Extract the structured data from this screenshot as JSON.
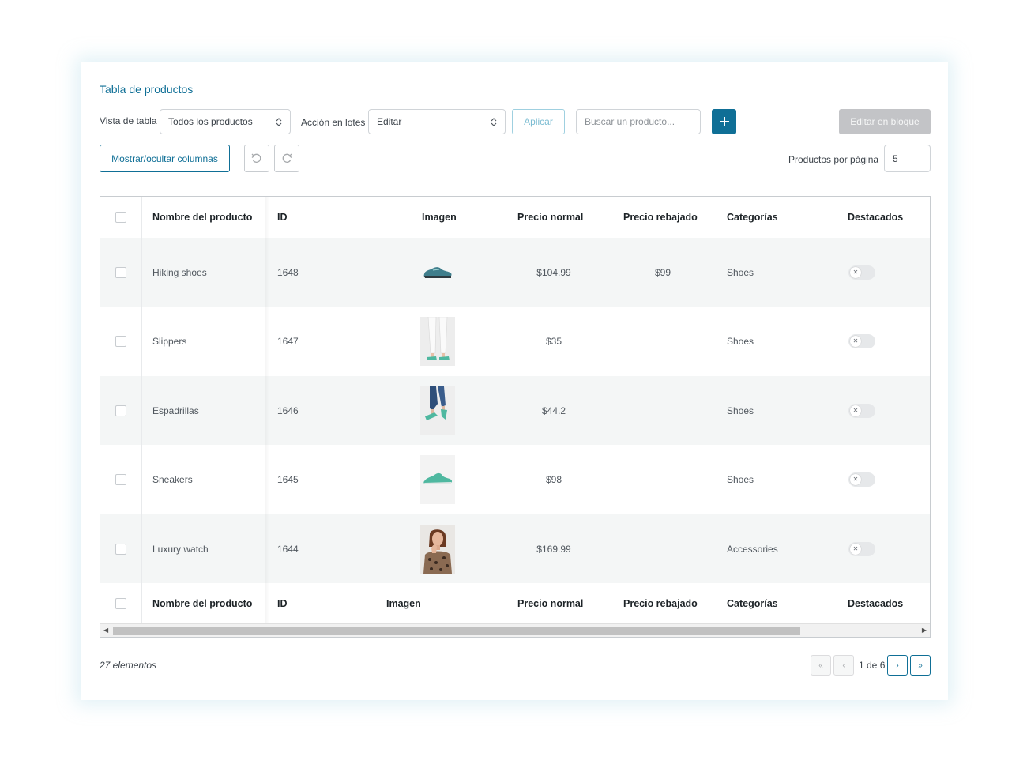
{
  "title": "Tabla de productos",
  "toolbar": {
    "view_label": "Vista de tabla",
    "view_value": "Todos los productos",
    "bulk_label": "Acción en lotes",
    "bulk_value": "Editar",
    "apply_label": "Aplicar",
    "search_placeholder": "Buscar un producto...",
    "bulk_edit_label": "Editar en bloque",
    "columns_label": "Mostrar/ocultar columnas",
    "per_page_label": "Productos por página",
    "per_page_value": "5"
  },
  "table": {
    "headers": [
      "Nombre del producto",
      "ID",
      "Imagen",
      "Precio normal",
      "Precio rebajado",
      "Categorías",
      "Destacados"
    ],
    "rows": [
      {
        "name": "Hiking shoes",
        "id": "1648",
        "image": "hiking-shoe",
        "price": "$104.99",
        "sale": "$99",
        "category": "Shoes",
        "featured": false
      },
      {
        "name": "Slippers",
        "id": "1647",
        "image": "slippers",
        "price": "$35",
        "sale": "",
        "category": "Shoes",
        "featured": false
      },
      {
        "name": "Espadrillas",
        "id": "1646",
        "image": "espadrillas",
        "price": "$44.2",
        "sale": "",
        "category": "Shoes",
        "featured": false
      },
      {
        "name": "Sneakers",
        "id": "1645",
        "image": "sneaker",
        "price": "$98",
        "sale": "",
        "category": "Shoes",
        "featured": false
      },
      {
        "name": "Luxury watch",
        "id": "1644",
        "image": "woman-portrait",
        "price": "$169.99",
        "sale": "",
        "category": "Accessories",
        "featured": false
      }
    ]
  },
  "footer": {
    "count": "27 elementos",
    "page_info": "1 de 6",
    "first": "«",
    "prev": "‹",
    "next": "›",
    "last": "»"
  },
  "colors": {
    "accent": "#0f6f96",
    "disabled": "#c3c4c7",
    "row_alt": "#f4f6f6",
    "shoe_teal": "#4fb8a0"
  }
}
